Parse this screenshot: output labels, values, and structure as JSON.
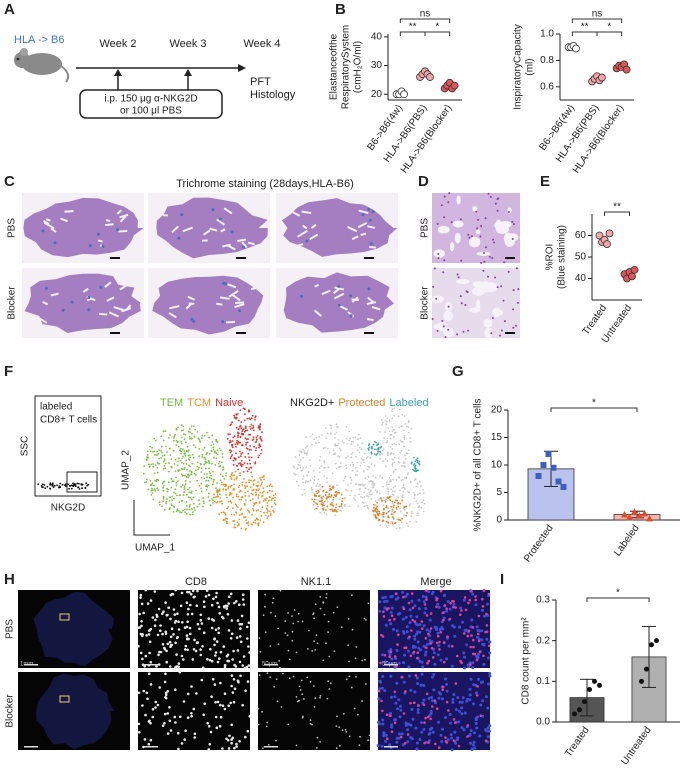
{
  "figure": {
    "panel_labels": [
      "A",
      "B",
      "C",
      "D",
      "E",
      "F",
      "G",
      "H",
      "I"
    ],
    "a": {
      "strain": "HLA -> B6",
      "weeks": [
        "Week 2",
        "Week 3",
        "Week 4"
      ],
      "readouts": [
        "PFT",
        "Histology"
      ],
      "treatment": [
        "i.p. 150 μg α-NKG2D",
        "or 100  μl PBS"
      ]
    },
    "c": {
      "title": "Trichrome staining (28days,HLA-B6)",
      "rows": [
        "PBS",
        "Blocker"
      ]
    },
    "d": {
      "rows": [
        "PBS",
        "Blocker"
      ]
    },
    "f": {
      "gate": [
        "labeled",
        "CD8+ T cells"
      ],
      "ssc": "SSC",
      "nkg2d": "NKG2D",
      "umap1_legend": [
        {
          "text": "TEM",
          "color": "#6dbb3c"
        },
        {
          "text": "TCM",
          "color": "#e8922a"
        },
        {
          "text": "Naive",
          "color": "#e0312a"
        }
      ],
      "umap2_legend": [
        {
          "text": "NKG2D+",
          "color": "#222222"
        },
        {
          "text": "Protected",
          "color": "#d9822b"
        },
        {
          "text": "Labeled",
          "color": "#3aa6b0"
        }
      ],
      "umap_y": "UMAP_2",
      "umap_x": "UMAP_1"
    },
    "h": {
      "columns": [
        "CD8",
        "NK1.1",
        "Merge"
      ],
      "rows": [
        "PBS",
        "Blocker"
      ],
      "scale_labels": [
        "1mm",
        "50μm",
        "50μm"
      ]
    }
  },
  "chart_data": [
    {
      "type": "strip",
      "y_label": [
        "Elastanceofthe",
        "RespiratorySystem",
        "(cmH₂O/ml)"
      ],
      "categories": [
        "B6->B6(4w)",
        "HLA->B6(PBS)",
        "HLA->B6(Blocker)"
      ],
      "points": [
        [
          20,
          20,
          21,
          20
        ],
        [
          26,
          27,
          28,
          27,
          26
        ],
        [
          22,
          23,
          24,
          22,
          23
        ]
      ],
      "colors": [
        "#ffffff",
        "#f4a6a6",
        "#e05555"
      ],
      "ylim": [
        18,
        41
      ],
      "yticks": [
        20,
        30,
        40
      ],
      "annotations": [
        "**",
        "*",
        "ns"
      ]
    },
    {
      "type": "strip",
      "y_label": [
        "InspiratoryCapacity",
        "(ml)"
      ],
      "categories": [
        "B6->B6(4w)",
        "HLA->B6(PBS)",
        "HLA->B6(Blocker)"
      ],
      "points": [
        [
          0.9,
          0.9,
          0.91,
          0.89
        ],
        [
          0.64,
          0.66,
          0.68,
          0.65,
          0.67
        ],
        [
          0.74,
          0.76,
          0.75,
          0.77,
          0.73
        ]
      ],
      "colors": [
        "#ffffff",
        "#f4a6a6",
        "#e05555"
      ],
      "ylim": [
        0.5,
        1.0
      ],
      "yticks": [
        0.6,
        0.8,
        {
          "value": 1,
          "label": "1.0"
        }
      ],
      "annotations": [
        "**",
        "*",
        "ns"
      ]
    },
    {
      "type": "strip",
      "y_label": [
        "%ROI",
        "(Blue staining)"
      ],
      "categories": [
        "Treated",
        "Untreated"
      ],
      "points": [
        [
          60,
          57,
          58,
          56,
          61
        ],
        [
          42,
          40,
          43,
          41,
          44
        ]
      ],
      "colors": [
        "#f4a6a6",
        "#e05555"
      ],
      "ylim": [
        30,
        70
      ],
      "yticks": [
        40,
        50,
        60
      ],
      "annotations": [
        "**"
      ]
    },
    {
      "type": "bar",
      "y_label": [
        "%NKG2D+ of all CD8+ T cells"
      ],
      "categories": [
        "Protected",
        "Labeled"
      ],
      "values": [
        9.3,
        1.0
      ],
      "errors": [
        3.2,
        0.6
      ],
      "points": [
        [
          8,
          10,
          12,
          9.5,
          7,
          6
        ],
        [
          1,
          0.5,
          1.5,
          0.8,
          1.2,
          0.3
        ]
      ],
      "colors": [
        "#b9c3ee",
        "#f4b7ae"
      ],
      "point_colors": [
        "#3f5fbf",
        "#e04a2c"
      ],
      "markers": [
        "square",
        "triangle"
      ],
      "ylim": [
        0,
        20
      ],
      "yticks": [
        0,
        5,
        10,
        15,
        20
      ],
      "annotations": [
        "*"
      ]
    },
    {
      "type": "bar",
      "y_label": [
        "CD8 count per mm²"
      ],
      "categories": [
        "Treated",
        "Untreated"
      ],
      "values": [
        0.06,
        0.16
      ],
      "errors": [
        0.045,
        0.075
      ],
      "points": [
        [
          0.02,
          0.03,
          0.05,
          0.08,
          0.1,
          0.09
        ],
        [
          0.1,
          0.13,
          0.19,
          0.2
        ]
      ],
      "colors": [
        "#555555",
        "#b0b0b0"
      ],
      "point_colors": [
        "#111111",
        "#111111"
      ],
      "markers": [
        "circle",
        "circle"
      ],
      "ylim": [
        0,
        0.3
      ],
      "yticks": [
        {
          "value": 0,
          "label": "0.0"
        },
        0.1,
        0.2,
        0.3
      ],
      "annotations": [
        "*"
      ]
    }
  ]
}
